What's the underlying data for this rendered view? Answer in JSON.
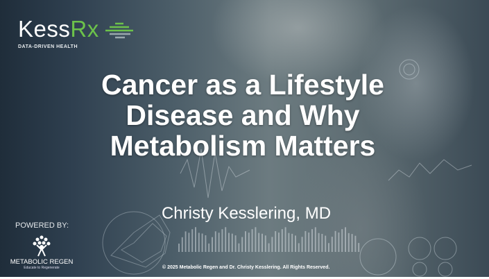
{
  "logo": {
    "brand_main": "Kess",
    "brand_accent": "Rx",
    "tagline": "DATA-DRIVEN HEALTH",
    "accent_color": "#6cc24a"
  },
  "title": "Cancer as a Lifestyle Disease and Why Metabolism Matters",
  "author": "Christy Kesslering, MD",
  "powered_by": {
    "label": "POWERED BY:",
    "org_name": "METABOLIC REGEN",
    "org_tagline": "Educate to Regenerate"
  },
  "copyright": "© 2025 Metabolic Regen and Dr. Christy Kesslering. All Rights Reserved."
}
